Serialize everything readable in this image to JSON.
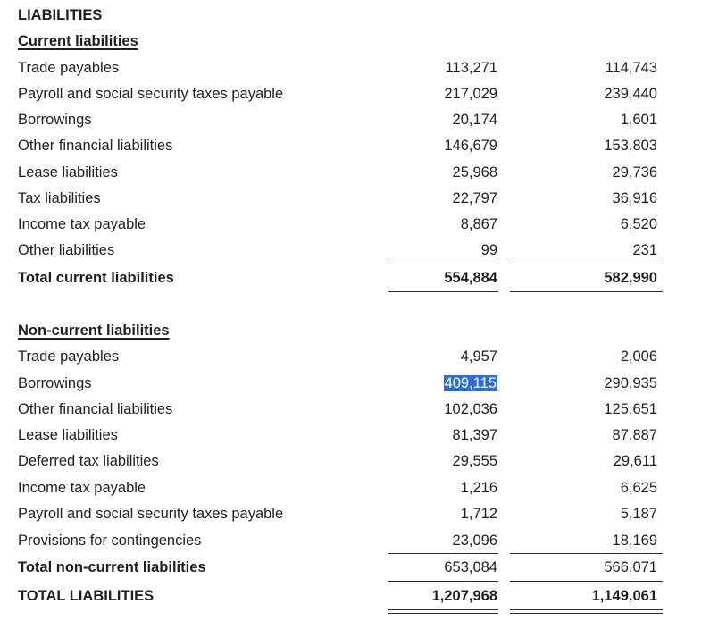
{
  "heading": "LIABILITIES",
  "current": {
    "title": "Current liabilities",
    "rows": [
      {
        "label": "Trade payables",
        "v1": "113,271",
        "v2": "114,743"
      },
      {
        "label": "Payroll and social security taxes payable",
        "v1": "217,029",
        "v2": "239,440"
      },
      {
        "label": "Borrowings",
        "v1": "20,174",
        "v2": "1,601"
      },
      {
        "label": "Other financial liabilities",
        "v1": "146,679",
        "v2": "153,803"
      },
      {
        "label": "Lease liabilities",
        "v1": "25,968",
        "v2": "29,736"
      },
      {
        "label": "Tax liabilities",
        "v1": "22,797",
        "v2": "36,916"
      },
      {
        "label": "Income tax payable",
        "v1": "8,867",
        "v2": "6,520"
      },
      {
        "label": "Other liabilities",
        "v1": "99",
        "v2": "231"
      }
    ],
    "total": {
      "label": "Total current liabilities",
      "v1": "554,884",
      "v2": "582,990"
    }
  },
  "noncurrent": {
    "title": "Non-current liabilities",
    "rows": [
      {
        "label": "Trade payables",
        "v1": "4,957",
        "v2": "2,006"
      },
      {
        "label": "Borrowings",
        "v1": "409,115",
        "v2": "290,935",
        "selected": true
      },
      {
        "label": "Other financial liabilities",
        "v1": "102,036",
        "v2": "125,651"
      },
      {
        "label": "Lease liabilities",
        "v1": "81,397",
        "v2": "87,887"
      },
      {
        "label": "Deferred tax liabilities",
        "v1": "29,555",
        "v2": "29,611"
      },
      {
        "label": "Income tax payable",
        "v1": "1,216",
        "v2": "6,625"
      },
      {
        "label": "Payroll and social security taxes payable",
        "v1": "1,712",
        "v2": "5,187"
      },
      {
        "label": "Provisions for contingencies",
        "v1": "23,096",
        "v2": "18,169"
      }
    ],
    "total": {
      "label": "Total non-current liabilities",
      "v1": "653,084",
      "v2": "566,071"
    }
  },
  "grand_total": {
    "label": "TOTAL LIABILITIES",
    "v1": "1,207,968",
    "v2": "1,149,061"
  },
  "colors": {
    "selection": "#2f6fd0",
    "text": "#1f1f1f"
  }
}
